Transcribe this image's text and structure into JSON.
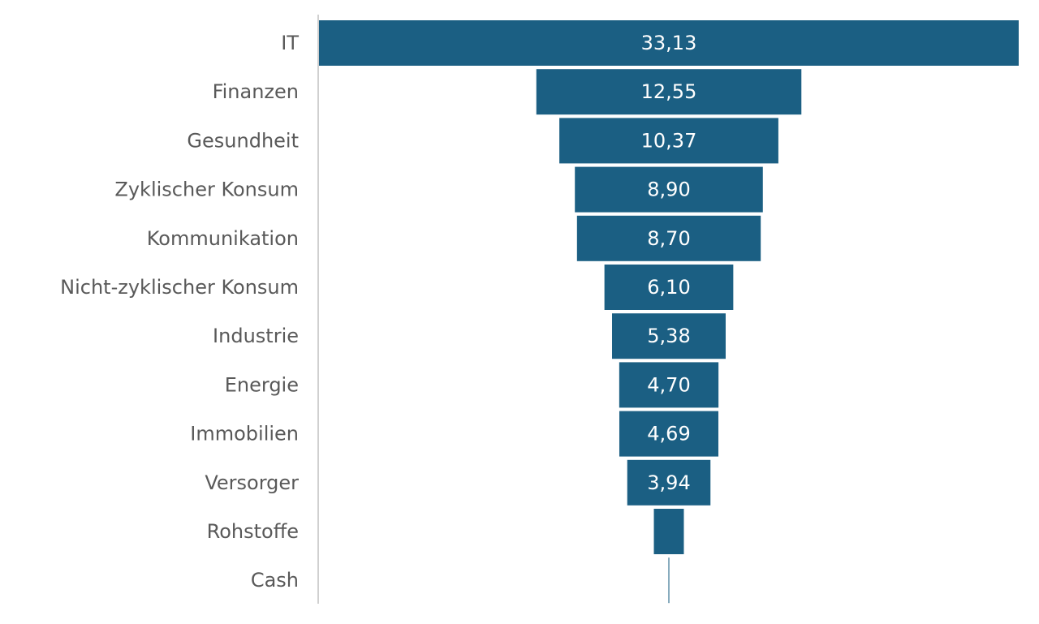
{
  "chart_data": {
    "type": "funnel",
    "categories": [
      "IT",
      "Finanzen",
      "Gesundheit",
      "Zyklischer Konsum",
      "Kommunikation",
      "Nicht-zyklischer Konsum",
      "Industrie",
      "Energie",
      "Immobilien",
      "Versorger",
      "Rohstoffe",
      "Cash"
    ],
    "values": [
      33.13,
      12.55,
      10.37,
      8.9,
      8.7,
      6.1,
      5.38,
      4.7,
      4.69,
      3.94,
      1.42,
      0.04
    ],
    "value_labels": [
      "33,13",
      "12,55",
      "10,37",
      "8,90",
      "8,70",
      "6,10",
      "5,38",
      "4,70",
      "4,69",
      "3,94",
      null,
      null
    ],
    "color": "#1b5f83"
  }
}
